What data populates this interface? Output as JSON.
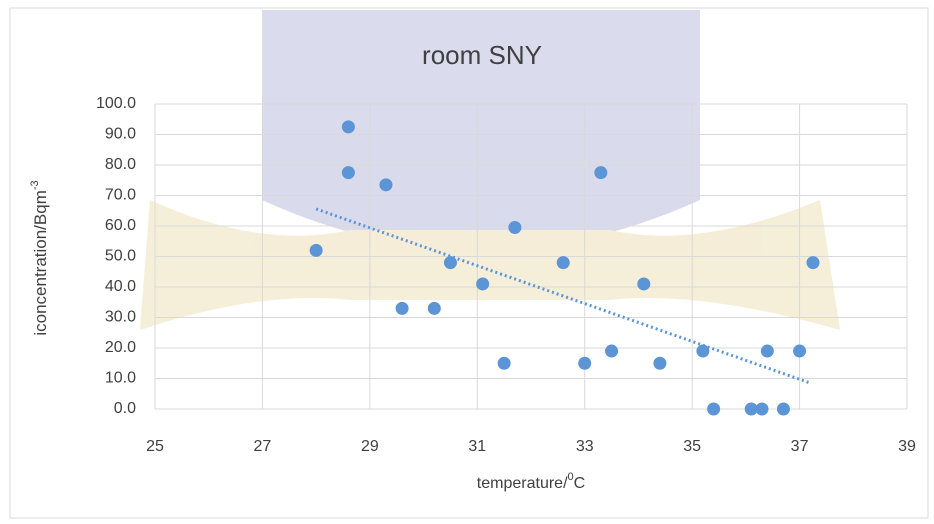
{
  "chart_data": {
    "type": "scatter",
    "title": "room SNY",
    "x_label": {
      "text": "temperature/",
      "sup": "0",
      "after": "C"
    },
    "y_label": {
      "text": "iconcentration/Bqm",
      "sup": "-3"
    },
    "series": [
      {
        "name": "room SNY",
        "color": "#5b95d6",
        "x": [
          28.0,
          28.6,
          28.6,
          29.3,
          29.6,
          30.2,
          30.5,
          31.1,
          31.5,
          31.7,
          32.6,
          33.0,
          33.3,
          33.5,
          34.1,
          34.4,
          35.2,
          35.4,
          36.1,
          36.3,
          36.4,
          36.7,
          37.0,
          37.25
        ],
        "values": [
          52,
          92.5,
          77.5,
          73.5,
          33,
          33,
          48,
          41,
          15,
          59.5,
          48,
          15,
          77.5,
          19,
          41,
          15,
          19,
          0,
          0,
          0,
          19,
          0,
          19,
          48
        ]
      }
    ],
    "trendline": {
      "color": "#5b95d6",
      "x": [
        28.0,
        37.2
      ],
      "values": [
        65.6,
        8.5
      ]
    },
    "xlim": [
      25,
      39
    ],
    "xticks": [
      25,
      27,
      29,
      31,
      33,
      35,
      37,
      39
    ],
    "ylim": [
      0,
      100
    ],
    "yticks": [
      {
        "value": 0,
        "label": "0.0"
      },
      {
        "value": 10,
        "label": "10.0"
      },
      {
        "value": 20,
        "label": "20.0"
      },
      {
        "value": 30,
        "label": "30.0"
      },
      {
        "value": 40,
        "label": "40.0"
      },
      {
        "value": 50,
        "label": "50.0"
      },
      {
        "value": 60,
        "label": "60.0"
      },
      {
        "value": 70,
        "label": "70.0"
      },
      {
        "value": 80,
        "label": "80.0"
      },
      {
        "value": 90,
        "label": "90.0"
      },
      {
        "value": 100,
        "label": "100.0"
      }
    ],
    "grid": true
  }
}
